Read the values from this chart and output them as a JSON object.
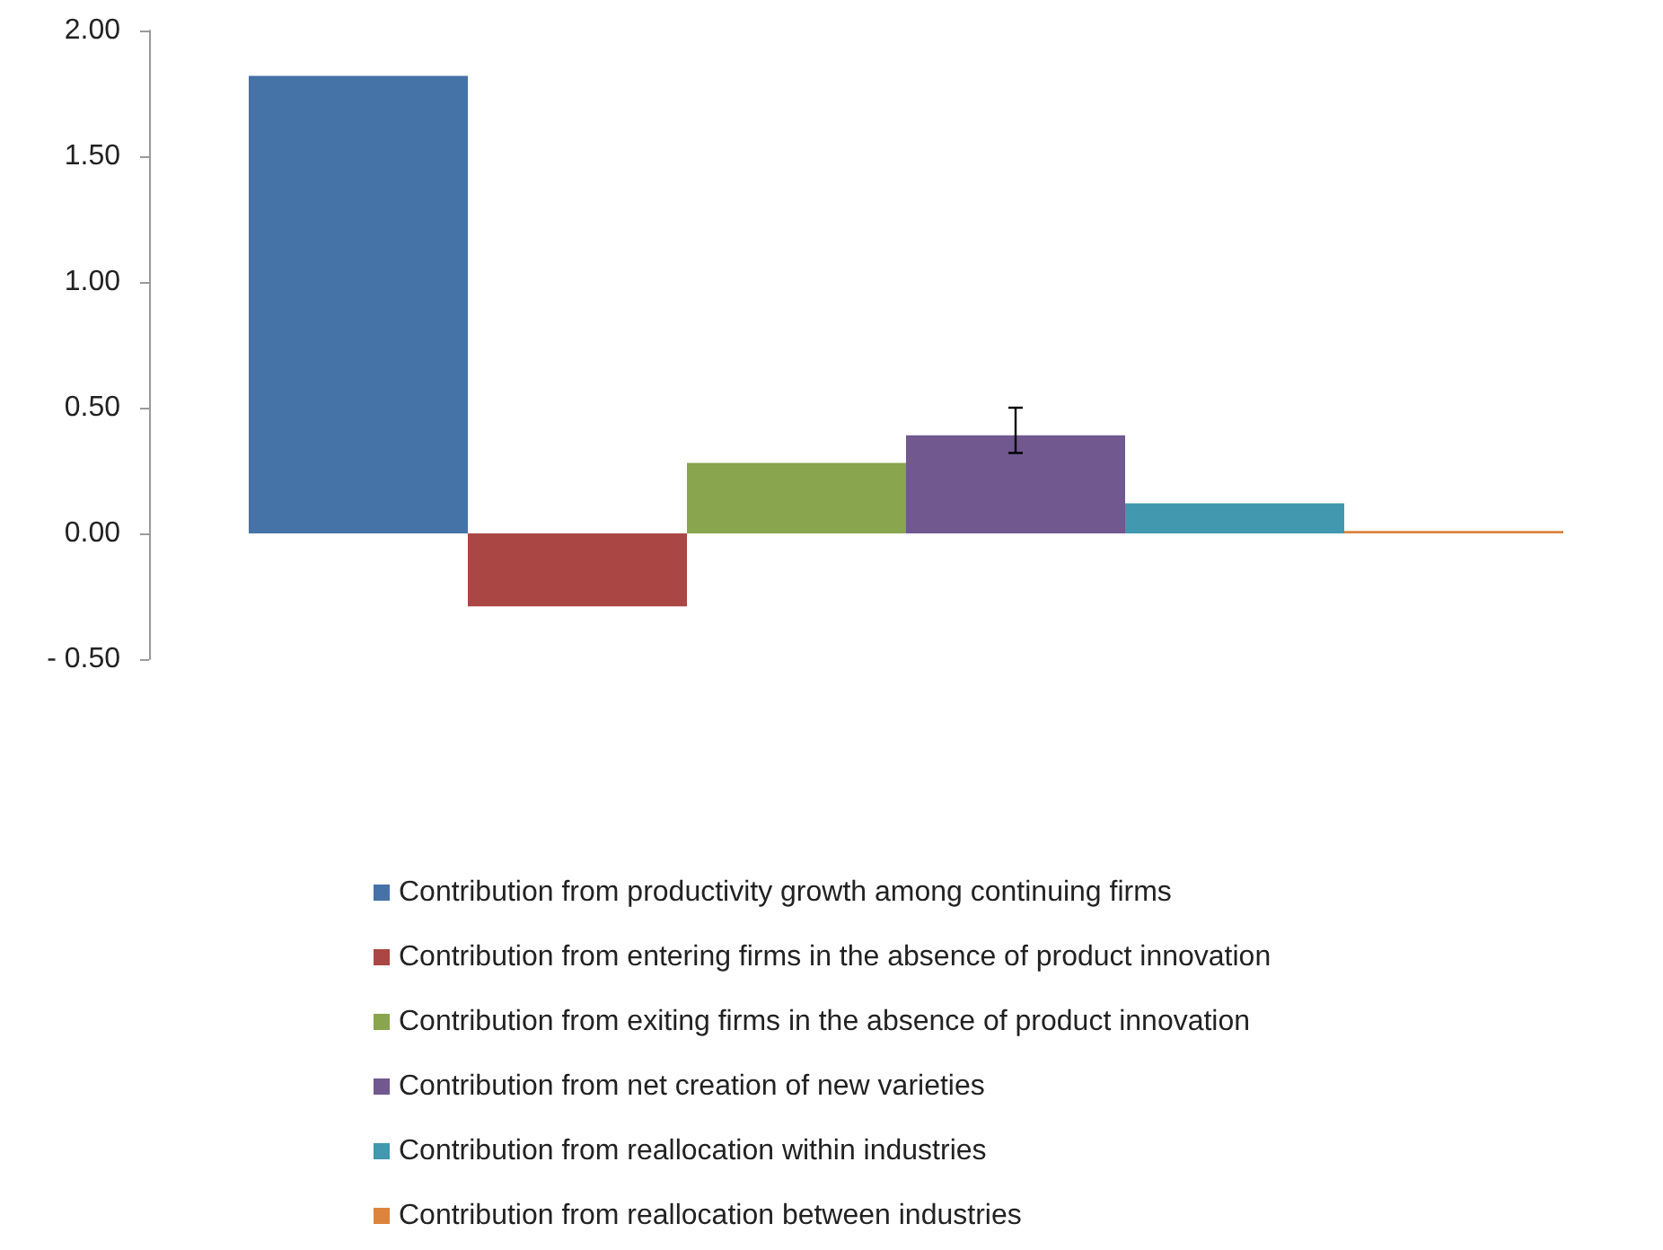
{
  "chart_data": {
    "type": "bar",
    "categories": [
      null
    ],
    "series": [
      {
        "name": "Contribution from productivity growth among continuing firms",
        "color": "#4572a7",
        "values": [
          1.82
        ]
      },
      {
        "name": "Contribution from entering firms in the absence of product innovation",
        "color": "#aa4643",
        "values": [
          -0.29
        ]
      },
      {
        "name": "Contribution from exiting firms in the absence of product innovation",
        "color": "#89a54e",
        "values": [
          0.28
        ]
      },
      {
        "name": "Contribution from net creation of new varieties",
        "color": "#71588f",
        "values": [
          0.39
        ],
        "errors": [
          [
            0.32,
            0.5
          ]
        ]
      },
      {
        "name": "Contribution from reallocation within industries",
        "color": "#4198af",
        "values": [
          0.12
        ]
      },
      {
        "name": "Contribution from reallocation between industries",
        "color": "#db843d",
        "values": [
          0.01
        ]
      }
    ],
    "ylim": [
      -0.5,
      2
    ],
    "yticks": [
      {
        "value": -0.5,
        "label": "- 0.50"
      },
      {
        "value": 0,
        "label": "0.00"
      },
      {
        "value": 0.5,
        "label": "0.50"
      },
      {
        "value": 1,
        "label": "1.00"
      },
      {
        "value": 1.5,
        "label": "1.50"
      },
      {
        "value": 2,
        "label": "2.00"
      }
    ],
    "grid": false,
    "legend": "bottom"
  }
}
